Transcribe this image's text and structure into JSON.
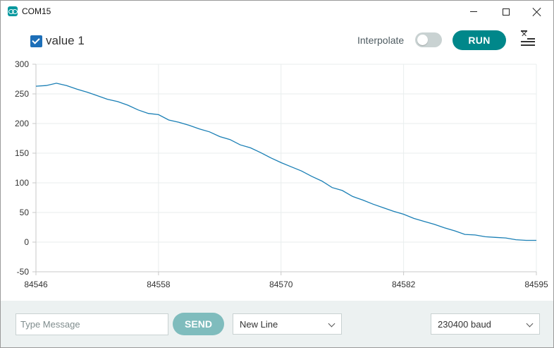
{
  "window": {
    "title": "COM15"
  },
  "toolbar": {
    "series_label": "value 1",
    "interpolate_label": "Interpolate",
    "interpolate_on": false,
    "run_label": "RUN"
  },
  "chart_data": {
    "type": "line",
    "title": "",
    "xlabel": "",
    "ylabel": "",
    "xlim": [
      84546,
      84595
    ],
    "ylim": [
      -50,
      300
    ],
    "x_ticks": [
      "84546",
      "84558",
      "84570",
      "84582",
      "84595"
    ],
    "y_ticks": [
      "300",
      "250",
      "200",
      "150",
      "100",
      "50",
      "0",
      "-50"
    ],
    "grid": true,
    "series": [
      {
        "name": "value 1",
        "color": "#1a7fb5",
        "x": [
          84546,
          84547,
          84548,
          84549,
          84550,
          84551,
          84552,
          84553,
          84554,
          84555,
          84556,
          84557,
          84558,
          84559,
          84560,
          84561,
          84562,
          84563,
          84564,
          84565,
          84566,
          84567,
          84568,
          84569,
          84570,
          84571,
          84572,
          84573,
          84574,
          84575,
          84576,
          84577,
          84578,
          84579,
          84580,
          84581,
          84582,
          84583,
          84584,
          84585,
          84586,
          84587,
          84588,
          84589,
          84590,
          84591,
          84592,
          84593,
          84594,
          84595
        ],
        "values": [
          263,
          264,
          268,
          264,
          258,
          253,
          247,
          241,
          237,
          231,
          223,
          217,
          215,
          206,
          202,
          197,
          191,
          186,
          178,
          173,
          164,
          159,
          151,
          142,
          134,
          127,
          120,
          111,
          103,
          92,
          87,
          77,
          71,
          64,
          58,
          52,
          47,
          40,
          35,
          30,
          24,
          19,
          13,
          12,
          9,
          8,
          7,
          4,
          3,
          3
        ]
      }
    ]
  },
  "bottom": {
    "message_placeholder": "Type Message",
    "send_label": "SEND",
    "line_ending": "New Line",
    "baud": "230400 baud"
  },
  "icons": {
    "app": "arduino-logo-icon",
    "minimize": "minimize-icon",
    "maximize": "maximize-icon",
    "close": "close-icon",
    "clear": "clear-list-icon",
    "dropdown": "chevron-down-icon",
    "checkbox": "checkbox-checked-icon"
  }
}
